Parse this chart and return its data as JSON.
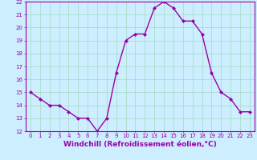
{
  "x": [
    0,
    1,
    2,
    3,
    4,
    5,
    6,
    7,
    8,
    9,
    10,
    11,
    12,
    13,
    14,
    15,
    16,
    17,
    18,
    19,
    20,
    21,
    22,
    23
  ],
  "y": [
    15.0,
    14.5,
    14.0,
    14.0,
    13.5,
    13.0,
    13.0,
    12.0,
    13.0,
    16.5,
    19.0,
    19.5,
    19.5,
    21.5,
    22.0,
    21.5,
    20.5,
    20.5,
    19.5,
    16.5,
    15.0,
    14.5,
    13.5,
    13.5
  ],
  "line_color": "#9900aa",
  "marker": "D",
  "markersize": 2,
  "linewidth": 1.0,
  "xlabel": "Windchill (Refroidissement éolien,°C)",
  "xlim": [
    -0.5,
    23.5
  ],
  "ylim": [
    12,
    22
  ],
  "yticks": [
    12,
    13,
    14,
    15,
    16,
    17,
    18,
    19,
    20,
    21,
    22
  ],
  "xticks": [
    0,
    1,
    2,
    3,
    4,
    5,
    6,
    7,
    8,
    9,
    10,
    11,
    12,
    13,
    14,
    15,
    16,
    17,
    18,
    19,
    20,
    21,
    22,
    23
  ],
  "bg_color": "#cceeff",
  "grid_color": "#aaddcc",
  "tick_color": "#9900aa",
  "xlabel_color": "#9900aa",
  "tick_fontsize": 5.0,
  "xlabel_fontsize": 6.5
}
